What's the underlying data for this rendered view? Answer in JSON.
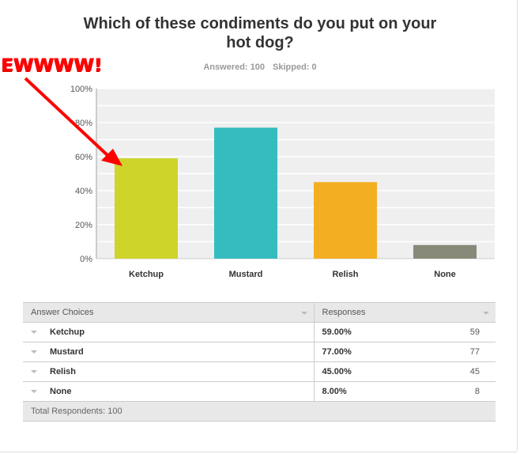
{
  "question": "Which of these condiments do you put on your hot dog?",
  "answered_label": "Answered: 100",
  "skipped_label": "Skipped: 0",
  "annotation": "EWWWW!",
  "annotation_color": "#ff0000",
  "chart_data": {
    "type": "bar",
    "categories": [
      "Ketchup",
      "Mustard",
      "Relish",
      "None"
    ],
    "values": [
      59,
      77,
      45,
      8
    ],
    "colors": [
      "#cfd42a",
      "#34bcbf",
      "#f4ae22",
      "#878a78"
    ],
    "ylim": [
      0,
      100
    ],
    "yticks": [
      "0%",
      "20%",
      "40%",
      "60%",
      "80%",
      "100%"
    ],
    "grid": true
  },
  "table": {
    "headers": [
      "Answer Choices",
      "Responses"
    ],
    "rows": [
      {
        "choice": "Ketchup",
        "percent": "59.00%",
        "count": "59"
      },
      {
        "choice": "Mustard",
        "percent": "77.00%",
        "count": "77"
      },
      {
        "choice": "Relish",
        "percent": "45.00%",
        "count": "45"
      },
      {
        "choice": "None",
        "percent": "8.00%",
        "count": "8"
      }
    ],
    "total": "Total Respondents: 100"
  }
}
